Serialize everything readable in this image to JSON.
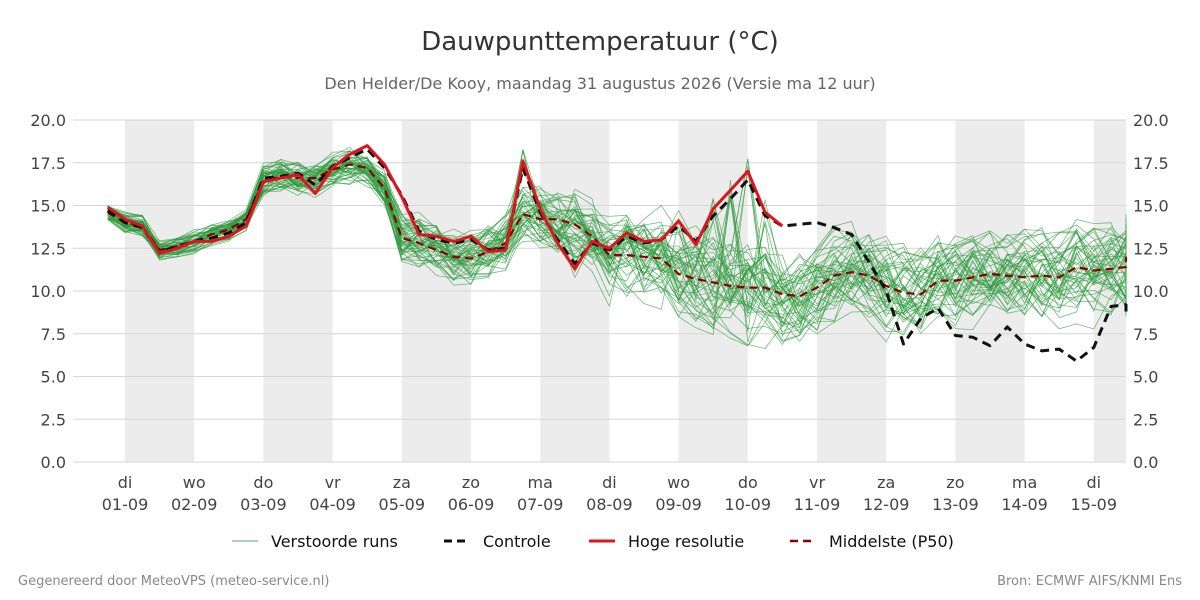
{
  "chart_data": {
    "type": "line",
    "title": "Dauwpunttemperatuur (°C)",
    "subtitle": "Den Helder/De Kooy, maandag 31 augustus 2026 (Versie ma 12 uur)",
    "ylim": [
      0,
      20
    ],
    "yticks": [
      "0.0",
      "2.5",
      "5.0",
      "7.5",
      "10.0",
      "12.5",
      "15.0",
      "17.5",
      "20.0"
    ],
    "xlim": [
      -0.75,
      14.5
    ],
    "x_unit": "days after 01-09 00:00",
    "x_day_labels": [
      {
        "day": "di",
        "date": "01-09"
      },
      {
        "day": "wo",
        "date": "02-09"
      },
      {
        "day": "do",
        "date": "03-09"
      },
      {
        "day": "vr",
        "date": "04-09"
      },
      {
        "day": "za",
        "date": "05-09"
      },
      {
        "day": "zo",
        "date": "06-09"
      },
      {
        "day": "ma",
        "date": "07-09"
      },
      {
        "day": "di",
        "date": "08-09"
      },
      {
        "day": "wo",
        "date": "09-09"
      },
      {
        "day": "do",
        "date": "10-09"
      },
      {
        "day": "vr",
        "date": "11-09"
      },
      {
        "day": "za",
        "date": "12-09"
      },
      {
        "day": "zo",
        "date": "13-09"
      },
      {
        "day": "ma",
        "date": "14-09"
      },
      {
        "day": "di",
        "date": "15-09"
      }
    ],
    "weekend_shading": "alternating days shaded light grey",
    "grid": true,
    "legend_position": "bottom",
    "legend": [
      "Verstoorde runs",
      "Controle",
      "Hoge resolutie",
      "Middelste (P50)"
    ],
    "series": [
      {
        "name": "Hoge resolutie",
        "color": "#e0141e",
        "style": "solid",
        "points": [
          [
            -0.25,
            14.9
          ],
          [
            0.0,
            14.2
          ],
          [
            0.25,
            13.8
          ],
          [
            0.5,
            12.2
          ],
          [
            0.75,
            12.5
          ],
          [
            1.0,
            12.9
          ],
          [
            1.25,
            12.9
          ],
          [
            1.5,
            13.2
          ],
          [
            1.75,
            13.8
          ],
          [
            2.0,
            16.4
          ],
          [
            2.25,
            16.6
          ],
          [
            2.5,
            16.8
          ],
          [
            2.75,
            15.7
          ],
          [
            3.0,
            17.2
          ],
          [
            3.25,
            18.0
          ],
          [
            3.5,
            18.5
          ],
          [
            3.75,
            17.4
          ],
          [
            4.0,
            15.5
          ],
          [
            4.25,
            13.3
          ],
          [
            4.5,
            13.2
          ],
          [
            4.75,
            12.9
          ],
          [
            5.0,
            13.2
          ],
          [
            5.25,
            12.3
          ],
          [
            5.5,
            12.4
          ],
          [
            5.75,
            17.6
          ],
          [
            6.0,
            14.8
          ],
          [
            6.25,
            12.8
          ],
          [
            6.5,
            11.3
          ],
          [
            6.75,
            12.9
          ],
          [
            7.0,
            12.5
          ],
          [
            7.25,
            13.4
          ],
          [
            7.5,
            12.9
          ],
          [
            7.75,
            13.0
          ],
          [
            8.0,
            14.1
          ],
          [
            8.25,
            12.7
          ],
          [
            8.5,
            14.8
          ],
          [
            8.75,
            15.9
          ],
          [
            9.0,
            17.0
          ],
          [
            9.25,
            14.6
          ],
          [
            9.5,
            13.8
          ]
        ]
      },
      {
        "name": "Controle",
        "color": "#111111",
        "style": "dashed",
        "points": [
          [
            -0.25,
            14.7
          ],
          [
            0.0,
            14.0
          ],
          [
            0.25,
            13.7
          ],
          [
            0.5,
            12.3
          ],
          [
            0.75,
            12.6
          ],
          [
            1.0,
            12.9
          ],
          [
            1.25,
            13.1
          ],
          [
            1.5,
            13.4
          ],
          [
            1.75,
            14.0
          ],
          [
            2.0,
            16.6
          ],
          [
            2.25,
            16.7
          ],
          [
            2.5,
            16.9
          ],
          [
            2.75,
            16.2
          ],
          [
            3.0,
            17.3
          ],
          [
            3.25,
            17.8
          ],
          [
            3.5,
            18.3
          ],
          [
            3.75,
            17.2
          ],
          [
            4.0,
            15.6
          ],
          [
            4.25,
            13.5
          ],
          [
            4.5,
            13.0
          ],
          [
            4.75,
            12.8
          ],
          [
            5.0,
            13.0
          ],
          [
            5.25,
            12.4
          ],
          [
            5.5,
            12.5
          ],
          [
            5.75,
            17.2
          ],
          [
            6.0,
            14.6
          ],
          [
            6.25,
            13.0
          ],
          [
            6.5,
            11.6
          ],
          [
            6.75,
            12.8
          ],
          [
            7.0,
            12.4
          ],
          [
            7.25,
            13.2
          ],
          [
            7.5,
            12.8
          ],
          [
            7.75,
            13.0
          ],
          [
            8.0,
            13.8
          ],
          [
            8.25,
            12.9
          ],
          [
            8.5,
            14.4
          ],
          [
            8.75,
            15.4
          ],
          [
            9.0,
            16.5
          ],
          [
            9.25,
            14.4
          ],
          [
            9.5,
            13.8
          ],
          [
            9.75,
            13.9
          ],
          [
            10.0,
            14.0
          ],
          [
            10.25,
            13.7
          ],
          [
            10.5,
            13.3
          ],
          [
            10.75,
            11.7
          ],
          [
            11.0,
            10.0
          ],
          [
            11.25,
            6.9
          ],
          [
            11.5,
            8.4
          ],
          [
            11.75,
            9.0
          ],
          [
            12.0,
            7.4
          ],
          [
            12.25,
            7.3
          ],
          [
            12.5,
            6.8
          ],
          [
            12.75,
            7.9
          ],
          [
            13.0,
            6.9
          ],
          [
            13.25,
            6.5
          ],
          [
            13.5,
            6.6
          ],
          [
            13.75,
            5.9
          ],
          [
            14.0,
            6.7
          ],
          [
            14.25,
            9.1
          ],
          [
            14.5,
            9.2
          ],
          [
            14.75,
            8.8
          ]
        ]
      },
      {
        "name": "Middelste (P50)",
        "color": "#8b0000",
        "style": "dashed",
        "points": [
          [
            -0.25,
            14.6
          ],
          [
            0.0,
            14.0
          ],
          [
            0.25,
            13.8
          ],
          [
            0.5,
            12.4
          ],
          [
            0.75,
            12.6
          ],
          [
            1.0,
            12.9
          ],
          [
            1.25,
            13.3
          ],
          [
            1.5,
            13.6
          ],
          [
            1.75,
            14.2
          ],
          [
            2.0,
            16.4
          ],
          [
            2.25,
            16.7
          ],
          [
            2.5,
            16.6
          ],
          [
            2.75,
            16.6
          ],
          [
            3.0,
            17.1
          ],
          [
            3.25,
            17.4
          ],
          [
            3.5,
            17.2
          ],
          [
            3.75,
            16.0
          ],
          [
            4.0,
            13.1
          ],
          [
            4.25,
            12.8
          ],
          [
            4.5,
            12.4
          ],
          [
            4.75,
            12.0
          ],
          [
            5.0,
            11.9
          ],
          [
            5.25,
            12.3
          ],
          [
            5.5,
            12.8
          ],
          [
            5.75,
            14.5
          ],
          [
            6.0,
            14.2
          ],
          [
            6.25,
            14.2
          ],
          [
            6.5,
            13.9
          ],
          [
            6.75,
            13.2
          ],
          [
            7.0,
            12.1
          ],
          [
            7.25,
            12.1
          ],
          [
            7.5,
            12.0
          ],
          [
            7.75,
            11.9
          ],
          [
            8.0,
            11.0
          ],
          [
            8.25,
            10.7
          ],
          [
            8.5,
            10.5
          ],
          [
            8.75,
            10.3
          ],
          [
            9.0,
            10.2
          ],
          [
            9.25,
            10.2
          ],
          [
            9.5,
            9.8
          ],
          [
            9.75,
            9.7
          ],
          [
            10.0,
            10.2
          ],
          [
            10.25,
            10.9
          ],
          [
            10.5,
            11.1
          ],
          [
            10.75,
            10.9
          ],
          [
            11.0,
            10.3
          ],
          [
            11.25,
            9.9
          ],
          [
            11.5,
            9.8
          ],
          [
            11.75,
            10.6
          ],
          [
            12.0,
            10.6
          ],
          [
            12.25,
            10.8
          ],
          [
            12.5,
            11.0
          ],
          [
            12.75,
            10.9
          ],
          [
            13.0,
            10.8
          ],
          [
            13.25,
            10.9
          ],
          [
            13.5,
            10.8
          ],
          [
            13.75,
            11.4
          ],
          [
            14.0,
            11.2
          ],
          [
            14.25,
            11.3
          ],
          [
            14.5,
            11.4
          ],
          [
            14.75,
            11.6
          ],
          [
            15.0,
            12.0
          ]
        ]
      },
      {
        "name": "Verstoorde runs",
        "color": "#2e9a3e",
        "style": "thin",
        "members": 50,
        "member_curves": "pseudo-random spread around the P50 curve; spread grows with lead time"
      }
    ]
  },
  "footer": {
    "left": "Gegenereerd door MeteoVPS (meteo-service.nl)",
    "right": "Bron: ECMWF AIFS/KNMI Ens"
  }
}
